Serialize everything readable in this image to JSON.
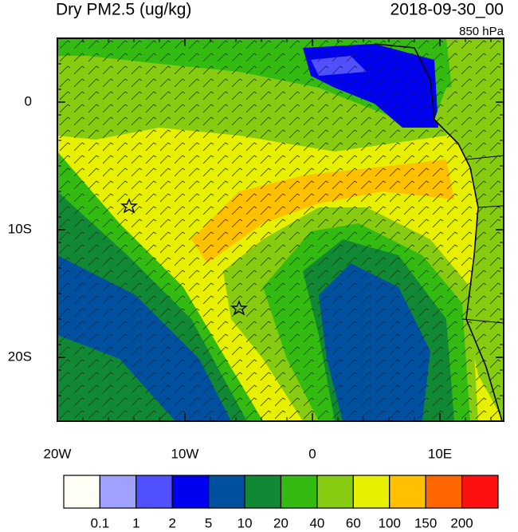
{
  "header": {
    "title": "Dry PM2.5 (ug/kg)",
    "valid_time": "2018-09-30_00",
    "level": "850 hPa"
  },
  "map": {
    "lon_range": [
      -20,
      15
    ],
    "lat_range": [
      -25,
      5
    ],
    "lon_ticks": [
      {
        "value": -20,
        "label": "20W"
      },
      {
        "value": -10,
        "label": "10W"
      },
      0,
      {
        "value": 10,
        "label": "10E"
      }
    ],
    "lat_ticks": [
      0,
      {
        "value": -10,
        "label": "10S"
      },
      {
        "value": -20,
        "label": "20S"
      }
    ]
  },
  "colorbar": {
    "levels": [
      0.1,
      1,
      2,
      5,
      10,
      20,
      40,
      60,
      100,
      150,
      200
    ],
    "colors": [
      "#fffff6",
      "#a0a0ff",
      "#5050ff",
      "#0000ee",
      "#0050a0",
      "#118833",
      "#33bb11",
      "#88cc11",
      "#e6f000",
      "#ffc000",
      "#ff6600",
      "#ff1010"
    ]
  }
}
